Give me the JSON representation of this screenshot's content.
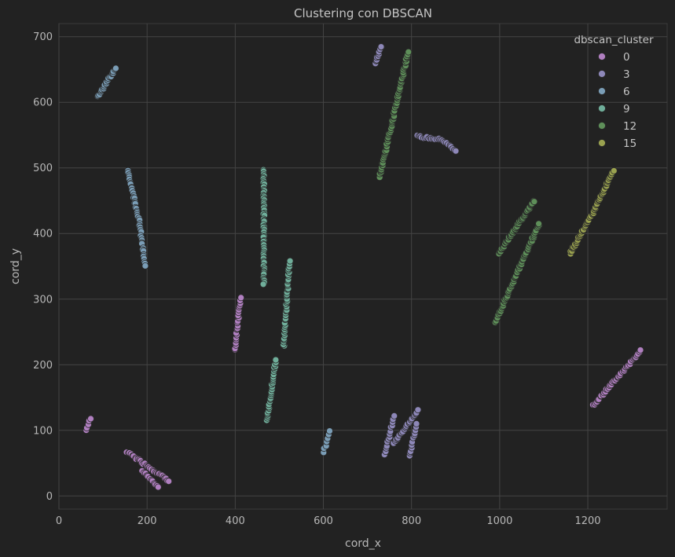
{
  "chart_data": {
    "type": "scatter",
    "title": "Clustering con DBSCAN",
    "xlabel": "cord_x",
    "ylabel": "cord_y",
    "xlim": [
      0,
      1380
    ],
    "ylim": [
      -20,
      720
    ],
    "x_ticks": [
      0,
      200,
      400,
      600,
      800,
      1000,
      1200
    ],
    "y_ticks": [
      0,
      100,
      200,
      300,
      400,
      500,
      600,
      700
    ],
    "grid": true,
    "legend": {
      "title": "dbscan_cluster",
      "placement": "top-right",
      "entries": [
        "0",
        "3",
        "6",
        "9",
        "12",
        "15"
      ]
    },
    "palette": [
      "#b07fc0",
      "#8d87b8",
      "#7a9db6",
      "#6fae9a",
      "#5e8f59",
      "#9aa24f"
    ],
    "segments": [
      {
        "cluster": 0,
        "from": [
          62,
          100
        ],
        "to": [
          72,
          118
        ],
        "n": 5
      },
      {
        "cluster": 0,
        "from": [
          1212,
          138
        ],
        "to": [
          1320,
          221
        ],
        "n": 40
      },
      {
        "cluster": 1,
        "from": [
          155,
          67
        ],
        "to": [
          250,
          23
        ],
        "n": 32
      },
      {
        "cluster": 1,
        "from": [
          190,
          38
        ],
        "to": [
          225,
          12
        ],
        "n": 12
      },
      {
        "cluster": 2,
        "from": [
          399,
          222
        ],
        "to": [
          412,
          302
        ],
        "n": 22
      },
      {
        "cluster": 3,
        "from": [
          740,
          64
        ],
        "to": [
          760,
          122
        ],
        "n": 14
      },
      {
        "cluster": 3,
        "from": [
          760,
          80
        ],
        "to": [
          815,
          130
        ],
        "n": 22
      },
      {
        "cluster": 3,
        "from": [
          795,
          60
        ],
        "to": [
          812,
          110
        ],
        "n": 12
      },
      {
        "cluster": 4,
        "from": [
          718,
          660
        ],
        "to": [
          732,
          686
        ],
        "n": 10
      },
      {
        "cluster": 5,
        "from": [
          812,
          548
        ],
        "to": [
          870,
          543
        ],
        "n": 16
      },
      {
        "cluster": 5,
        "from": [
          870,
          543
        ],
        "to": [
          900,
          526
        ],
        "n": 10
      },
      {
        "cluster": 6,
        "from": [
          88,
          608
        ],
        "to": [
          128,
          652
        ],
        "n": 20
      },
      {
        "cluster": 7,
        "from": [
          157,
          495
        ],
        "to": [
          182,
          420
        ],
        "n": 26
      },
      {
        "cluster": 7,
        "from": [
          182,
          420
        ],
        "to": [
          195,
          350
        ],
        "n": 20
      },
      {
        "cluster": 8,
        "from": [
          600,
          66
        ],
        "to": [
          615,
          100
        ],
        "n": 7
      },
      {
        "cluster": 9,
        "from": [
          465,
          498
        ],
        "to": [
          465,
          322
        ],
        "n": 60
      },
      {
        "cluster": 10,
        "from": [
          472,
          114
        ],
        "to": [
          492,
          208
        ],
        "n": 30
      },
      {
        "cluster": 11,
        "from": [
          510,
          228
        ],
        "to": [
          523,
          357
        ],
        "n": 40
      },
      {
        "cluster": 12,
        "from": [
          728,
          487
        ],
        "to": [
          792,
          676
        ],
        "n": 70
      },
      {
        "cluster": 13,
        "from": [
          998,
          370
        ],
        "to": [
          1078,
          450
        ],
        "n": 45
      },
      {
        "cluster": 14,
        "from": [
          990,
          265
        ],
        "to": [
          1090,
          415
        ],
        "n": 60
      },
      {
        "cluster": 15,
        "from": [
          1160,
          370
        ],
        "to": [
          1210,
          430
        ],
        "n": 30
      },
      {
        "cluster": 15,
        "from": [
          1210,
          430
        ],
        "to": [
          1258,
          495
        ],
        "n": 30
      }
    ]
  }
}
